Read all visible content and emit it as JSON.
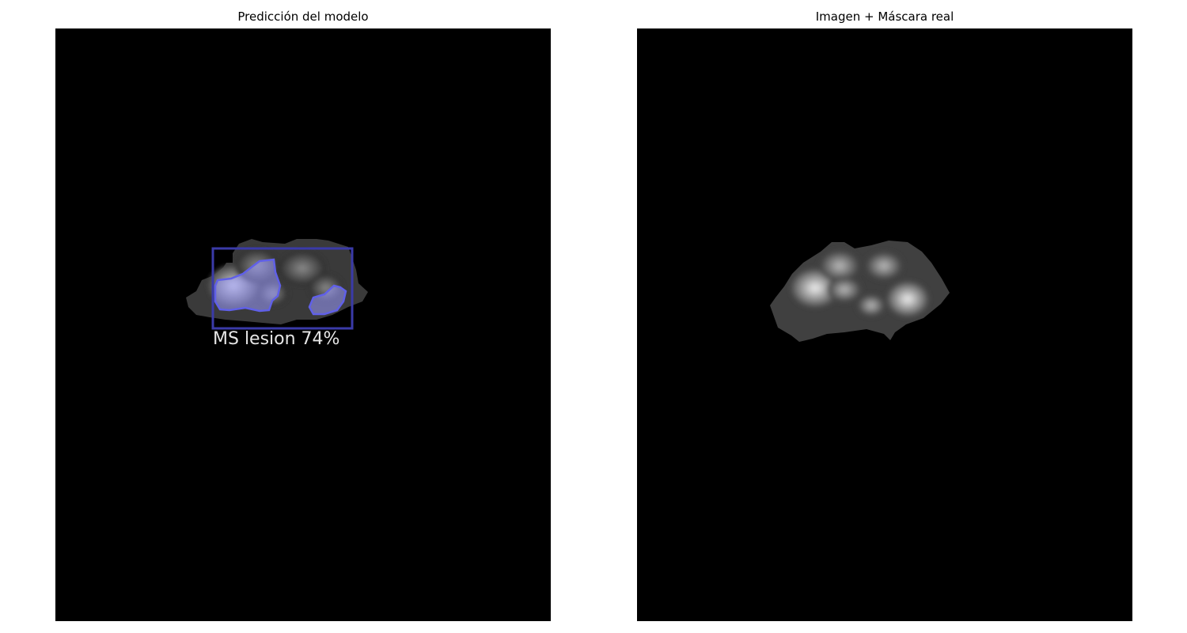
{
  "panels": {
    "left": {
      "title": "Predicción del modelo",
      "detection": {
        "label": "MS lesion 74%",
        "box_color": "#3a3aa8",
        "mask_color": "#9a9aff"
      }
    },
    "right": {
      "title": "Imagen + Máscara real"
    }
  }
}
